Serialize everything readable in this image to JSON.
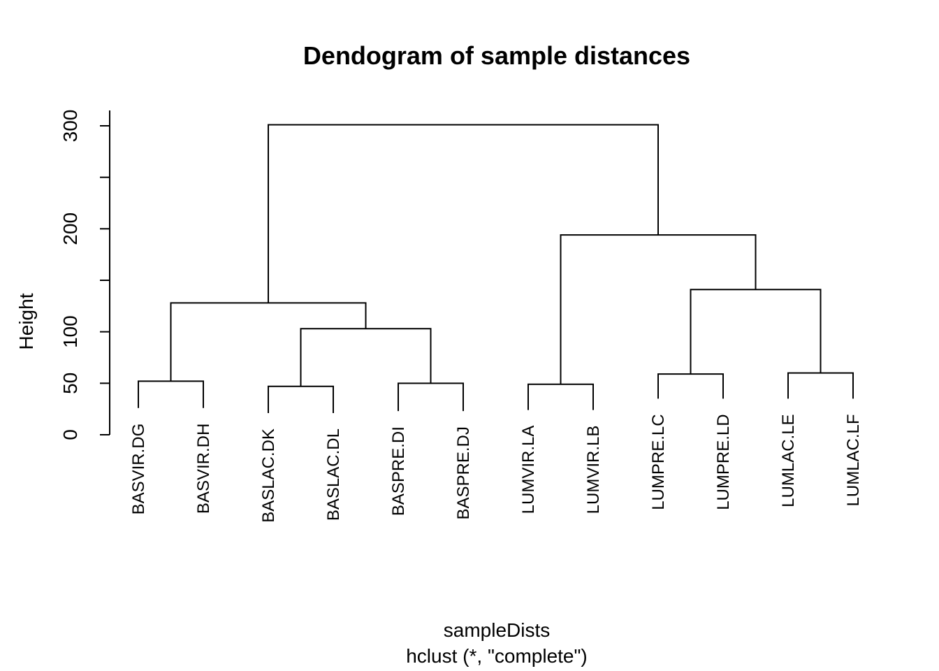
{
  "chart_data": {
    "type": "dendrogram",
    "title": "Dendogram of sample distances",
    "ylabel": "Height",
    "xlabel": "sampleDists",
    "sub": "hclust (*, \"complete\")",
    "ylim": [
      0,
      300
    ],
    "yticks": [
      0,
      50,
      100,
      150,
      200,
      250,
      300
    ],
    "ytick_labels": [
      "0",
      "50",
      "100",
      "",
      "200",
      "",
      "300"
    ],
    "leaves": [
      "BASVIR.DG",
      "BASVIR.DH",
      "BASLAC.DK",
      "BASLAC.DL",
      "BASPRE.DI",
      "BASPRE.DJ",
      "LUMVIR.LA",
      "LUMVIR.LB",
      "LUMPRE.LC",
      "LUMPRE.LD",
      "LUMLAC.LE",
      "LUMLAC.LF"
    ],
    "leaf_heights": [
      26,
      26,
      21,
      21,
      23,
      23,
      24,
      24,
      35,
      35,
      35,
      35
    ],
    "merges": [
      {
        "children": [
          "BASVIR.DG",
          "BASVIR.DH"
        ],
        "height": 52
      },
      {
        "children": [
          "BASLAC.DK",
          "BASLAC.DL"
        ],
        "height": 47
      },
      {
        "children": [
          "BASPRE.DI",
          "BASPRE.DJ"
        ],
        "height": 50
      },
      {
        "children": [
          "LUMVIR.LA",
          "LUMVIR.LB"
        ],
        "height": 49
      },
      {
        "children": [
          "LUMPRE.LC",
          "LUMPRE.LD"
        ],
        "height": 59
      },
      {
        "children": [
          "LUMLAC.LE",
          "LUMLAC.LF"
        ],
        "height": 60
      },
      {
        "children": [
          "BASLAC",
          "BASPRE"
        ],
        "height": 103
      },
      {
        "children": [
          "LUMPRE",
          "LUMLAC"
        ],
        "height": 141
      },
      {
        "children": [
          "BASVIR",
          "BAS_LAC_PRE"
        ],
        "height": 128
      },
      {
        "children": [
          "LUMVIR",
          "LUM_PRE_LAC"
        ],
        "height": 194
      },
      {
        "children": [
          "BAS",
          "LUM"
        ],
        "height": 301
      }
    ]
  }
}
